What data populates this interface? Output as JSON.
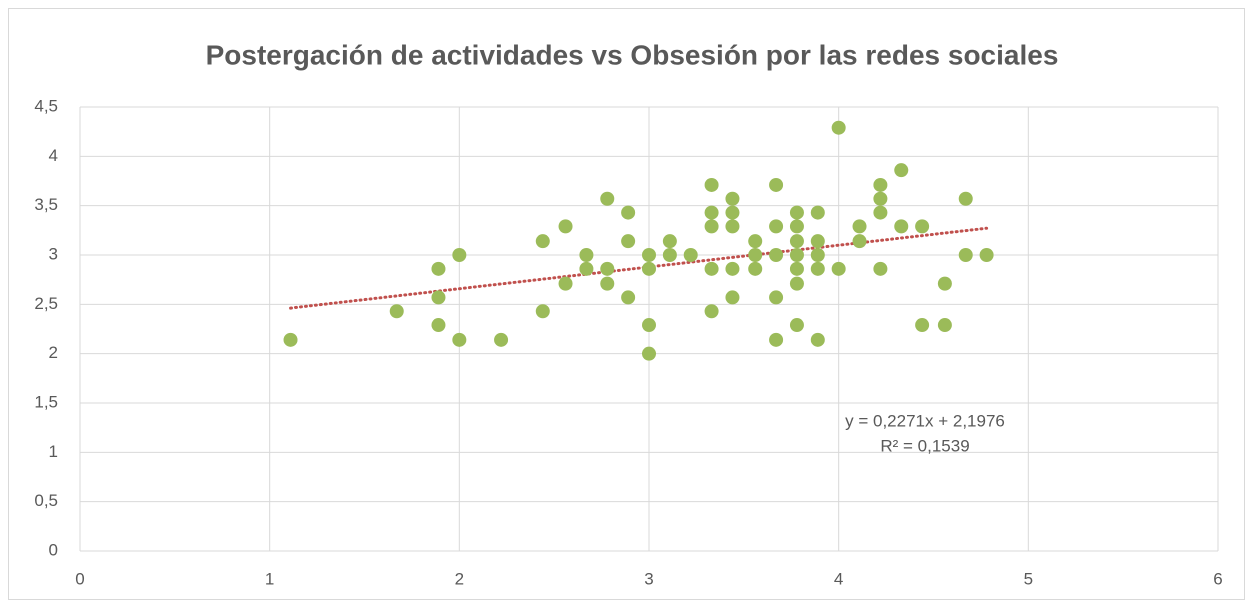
{
  "chart_data": {
    "type": "scatter",
    "title": "Postergación de actividades vs Obsesión por las redes sociales",
    "color": "#9bbb59",
    "trendline_color": "#c0504d",
    "grid": true,
    "xlim": [
      0,
      6
    ],
    "xticks": [
      0,
      1,
      2,
      3,
      4,
      5,
      6
    ],
    "ylim": [
      0,
      4.5
    ],
    "yticks": [
      0,
      {
        "value": 0.5,
        "label": "0,5"
      },
      1,
      {
        "value": 1.5,
        "label": "1,5"
      },
      2,
      {
        "value": 2.5,
        "label": "2,5"
      },
      3,
      {
        "value": 3.5,
        "label": "3,5"
      },
      4,
      {
        "value": 4.5,
        "label": "4,5"
      }
    ],
    "trendline": {
      "equation": "y = 0,2271x + 2,1976",
      "r2": "R² = 0,1539"
    },
    "x": [
      1.11,
      1.67,
      1.89,
      1.89,
      1.89,
      2.0,
      2.0,
      2.22,
      2.44,
      2.44,
      2.56,
      2.56,
      2.67,
      2.67,
      2.78,
      2.78,
      2.78,
      2.89,
      2.89,
      2.89,
      3.0,
      3.0,
      3.0,
      3.0,
      3.11,
      3.11,
      3.22,
      3.33,
      3.33,
      3.33,
      3.33,
      3.33,
      3.44,
      3.44,
      3.44,
      3.44,
      3.44,
      3.56,
      3.56,
      3.56,
      3.67,
      3.67,
      3.67,
      3.67,
      3.67,
      3.78,
      3.78,
      3.78,
      3.78,
      3.78,
      3.78,
      3.78,
      3.89,
      3.89,
      3.89,
      3.89,
      3.89,
      4.0,
      4.0,
      4.11,
      4.11,
      4.22,
      4.22,
      4.22,
      4.22,
      4.33,
      4.33,
      4.44,
      4.44,
      4.56,
      4.56,
      4.67,
      4.67,
      4.78
    ],
    "values": [
      2.14,
      2.43,
      2.86,
      2.57,
      2.29,
      3.0,
      2.14,
      2.14,
      3.14,
      2.43,
      3.29,
      2.71,
      3.0,
      2.86,
      3.57,
      2.86,
      2.71,
      3.43,
      3.14,
      2.57,
      3.0,
      2.86,
      2.29,
      2.0,
      3.14,
      3.0,
      3.0,
      3.71,
      3.43,
      3.29,
      2.86,
      2.43,
      3.57,
      3.43,
      3.29,
      2.86,
      2.57,
      3.14,
      3.0,
      2.86,
      3.71,
      3.29,
      3.0,
      2.57,
      2.14,
      3.43,
      3.29,
      3.14,
      3.0,
      2.86,
      2.71,
      2.29,
      3.43,
      3.14,
      3.0,
      2.86,
      2.14,
      4.29,
      2.86,
      3.29,
      3.14,
      3.71,
      3.57,
      3.43,
      2.86,
      3.86,
      3.29,
      3.29,
      2.29,
      2.71,
      2.29,
      3.57,
      3.0,
      3.0
    ]
  }
}
